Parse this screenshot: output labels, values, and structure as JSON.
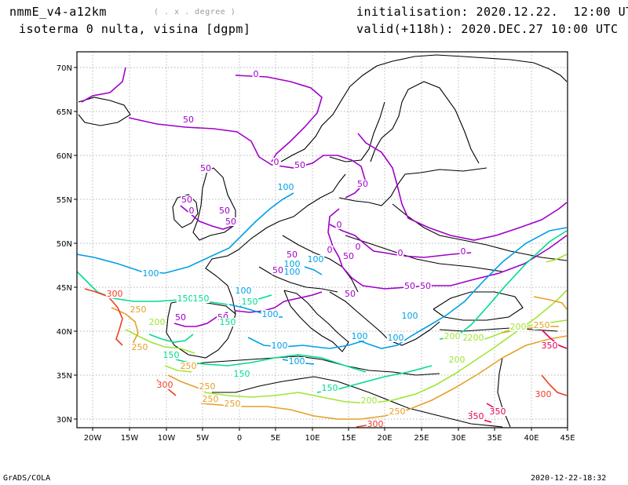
{
  "header": {
    "model": "nmmE_v4-a12km",
    "units": "( . x . degree )",
    "title": "isoterma 0 nulta, visina [dgpm]",
    "init": "initialisation: 2020.12.22.  12:00 UTC",
    "valid": "valid(+118h): 2020.DEC.27 10:00 UTC"
  },
  "footer": {
    "left": "GrADS/COLA",
    "right": "2020-12-22-18:32"
  },
  "map": {
    "lon_ticks": [
      "20W",
      "15W",
      "10W",
      "5W",
      "0",
      "5E",
      "10E",
      "15E",
      "20E",
      "25E",
      "30E",
      "35E",
      "40E",
      "45E"
    ],
    "lat_ticks": [
      "30N",
      "35N",
      "40N",
      "45N",
      "50N",
      "55N",
      "60N",
      "65N",
      "70N"
    ],
    "contour_colors": {
      "0": "#a000c8",
      "50": "#a000c8",
      "100": "#00a0e6",
      "150": "#00dc8c",
      "200": "#a0e632",
      "250": "#e6a028",
      "300": "#f03c28",
      "350": "#e6005a"
    },
    "contour_labels": [
      {
        "t": "0",
        "v": "0"
      },
      {
        "t": "0",
        "v": "0"
      },
      {
        "t": "0",
        "v": "0"
      },
      {
        "t": "0",
        "v": "0"
      },
      {
        "t": "0",
        "v": "0"
      },
      {
        "t": "0",
        "v": "0"
      },
      {
        "t": "0",
        "v": "0"
      },
      {
        "t": "0",
        "v": "0"
      },
      {
        "t": "50",
        "v": "50"
      },
      {
        "t": "50",
        "v": "50"
      },
      {
        "t": "50",
        "v": "50"
      },
      {
        "t": "50",
        "v": "50"
      },
      {
        "t": "50",
        "v": "50"
      },
      {
        "t": "50",
        "v": "50"
      },
      {
        "t": "50",
        "v": "50"
      },
      {
        "t": "50",
        "v": "50"
      },
      {
        "t": "50",
        "v": "50"
      },
      {
        "t": "50",
        "v": "50"
      },
      {
        "t": "50",
        "v": "50"
      },
      {
        "t": "50",
        "v": "50"
      },
      {
        "t": "50",
        "v": "50"
      },
      {
        "t": "50",
        "v": "50"
      },
      {
        "t": "50",
        "v": "50"
      },
      {
        "t": "100",
        "v": "100"
      },
      {
        "t": "100",
        "v": "100"
      },
      {
        "t": "100",
        "v": "100"
      },
      {
        "t": "100",
        "v": "100"
      },
      {
        "t": "100",
        "v": "100"
      },
      {
        "t": "100",
        "v": "100"
      },
      {
        "t": "100",
        "v": "100"
      },
      {
        "t": "100",
        "v": "100"
      },
      {
        "t": "100",
        "v": "100"
      },
      {
        "t": "100",
        "v": "100"
      },
      {
        "t": "100",
        "v": "100"
      },
      {
        "t": "100",
        "v": "100"
      },
      {
        "t": "150",
        "v": "150"
      },
      {
        "t": "150",
        "v": "150"
      },
      {
        "t": "150",
        "v": "150"
      },
      {
        "t": "150",
        "v": "150"
      },
      {
        "t": "150",
        "v": "150"
      },
      {
        "t": "150",
        "v": "150"
      },
      {
        "t": "150",
        "v": "150"
      },
      {
        "t": "200",
        "v": "200"
      },
      {
        "t": "200",
        "v": "200"
      },
      {
        "t": "200",
        "v": "200"
      },
      {
        "t": "200",
        "v": "200"
      },
      {
        "t": "200",
        "v": "200"
      },
      {
        "t": "200",
        "v": "200"
      },
      {
        "t": "200",
        "v": "200"
      },
      {
        "t": "250",
        "v": "250"
      },
      {
        "t": "250",
        "v": "250"
      },
      {
        "t": "250",
        "v": "250"
      },
      {
        "t": "250",
        "v": "250"
      },
      {
        "t": "250",
        "v": "250"
      },
      {
        "t": "250",
        "v": "250"
      },
      {
        "t": "250",
        "v": "250"
      },
      {
        "t": "250",
        "v": "250"
      },
      {
        "t": "300",
        "v": "300"
      },
      {
        "t": "300",
        "v": "300"
      },
      {
        "t": "300",
        "v": "300"
      },
      {
        "t": "300",
        "v": "300"
      },
      {
        "t": "350",
        "v": "350"
      },
      {
        "t": "350",
        "v": "350"
      },
      {
        "t": "350",
        "v": "350"
      }
    ]
  }
}
